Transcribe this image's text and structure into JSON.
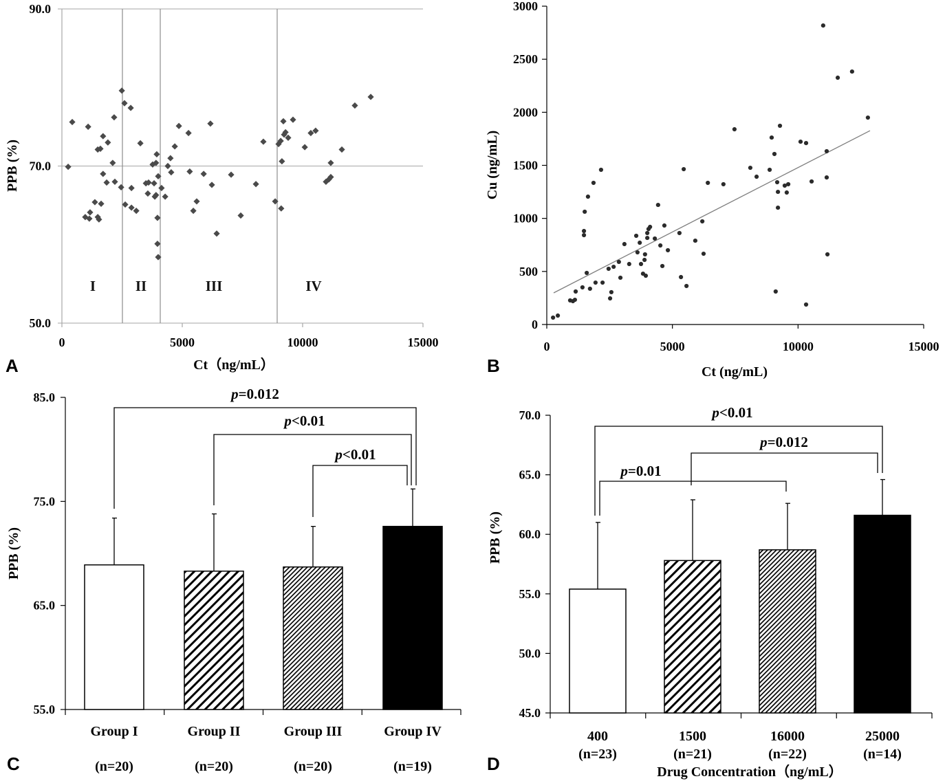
{
  "chart_data": [
    {
      "panel_label": "A",
      "type": "scatter",
      "xlabel": "Ct（ng/mL）",
      "ylabel": "PPB (%)",
      "xlim": [
        0,
        15000
      ],
      "ylim": [
        50,
        90
      ],
      "xticks": [
        "0",
        "5000",
        "10000",
        "15000"
      ],
      "yticks": [
        "50.0",
        "70.0",
        "90.0"
      ],
      "grid": "horizontal",
      "group_boundaries": [
        2514,
        4086,
        8943
      ],
      "group_labels": [
        "I",
        "II",
        "III",
        "IV"
      ],
      "points": [
        [
          260,
          69.9
        ],
        [
          430,
          75.6
        ],
        [
          1090,
          75.0
        ],
        [
          970,
          63.5
        ],
        [
          1140,
          63.3
        ],
        [
          1170,
          64.1
        ],
        [
          1370,
          65.4
        ],
        [
          1490,
          63.5
        ],
        [
          1540,
          63.2
        ],
        [
          1630,
          65.2
        ],
        [
          1490,
          72.1
        ],
        [
          1600,
          72.2
        ],
        [
          1710,
          73.8
        ],
        [
          1910,
          73.0
        ],
        [
          1710,
          69.0
        ],
        [
          1860,
          67.9
        ],
        [
          2110,
          70.4
        ],
        [
          2200,
          68.0
        ],
        [
          2170,
          76.2
        ],
        [
          2460,
          67.3
        ],
        [
          2490,
          79.6
        ],
        [
          2600,
          78.0
        ],
        [
          2630,
          65.1
        ],
        [
          2860,
          77.4
        ],
        [
          2890,
          67.2
        ],
        [
          2890,
          64.7
        ],
        [
          3090,
          64.3
        ],
        [
          3260,
          72.9
        ],
        [
          3490,
          67.8
        ],
        [
          3600,
          67.9
        ],
        [
          3770,
          70.2
        ],
        [
          3830,
          67.8
        ],
        [
          3910,
          70.4
        ],
        [
          3570,
          66.5
        ],
        [
          3860,
          66.1
        ],
        [
          3910,
          66.3
        ],
        [
          3940,
          71.5
        ],
        [
          3970,
          63.4
        ],
        [
          3970,
          60.1
        ],
        [
          4000,
          58.4
        ],
        [
          4000,
          68.7
        ],
        [
          4140,
          67.2
        ],
        [
          4290,
          66.1
        ],
        [
          4400,
          70.0
        ],
        [
          4510,
          71.0
        ],
        [
          4540,
          69.2
        ],
        [
          4690,
          72.5
        ],
        [
          4860,
          75.1
        ],
        [
          5260,
          74.2
        ],
        [
          5310,
          69.3
        ],
        [
          5460,
          64.3
        ],
        [
          5600,
          65.5
        ],
        [
          5890,
          69.0
        ],
        [
          6170,
          75.4
        ],
        [
          6230,
          67.6
        ],
        [
          6430,
          61.4
        ],
        [
          7030,
          68.9
        ],
        [
          7430,
          63.7
        ],
        [
          8060,
          67.7
        ],
        [
          8370,
          73.1
        ],
        [
          8860,
          65.5
        ],
        [
          9000,
          72.8
        ],
        [
          9090,
          73.2
        ],
        [
          9110,
          64.6
        ],
        [
          9140,
          70.6
        ],
        [
          9200,
          75.7
        ],
        [
          9230,
          74.0
        ],
        [
          9290,
          74.3
        ],
        [
          9400,
          73.6
        ],
        [
          9600,
          75.9
        ],
        [
          10090,
          72.4
        ],
        [
          10340,
          74.2
        ],
        [
          10540,
          74.5
        ],
        [
          10970,
          68.0
        ],
        [
          11090,
          68.3
        ],
        [
          11170,
          68.6
        ],
        [
          11170,
          70.4
        ],
        [
          11630,
          72.1
        ],
        [
          12170,
          77.7
        ],
        [
          12830,
          78.8
        ]
      ]
    },
    {
      "panel_label": "B",
      "type": "scatter",
      "xlabel": "Ct (ng/mL)",
      "ylabel": "Cu (ng/mL)",
      "xlim": [
        0,
        15000
      ],
      "ylim": [
        0,
        3000
      ],
      "xticks": [
        "0",
        "5000",
        "10000",
        "15000"
      ],
      "yticks": [
        "0",
        "500",
        "1000",
        "1500",
        "2000",
        "2500",
        "3000"
      ],
      "trendline": {
        "x": [
          274,
          12865
        ],
        "y": [
          298,
          1827
        ]
      },
      "points": [
        [
          250,
          65
        ],
        [
          440,
          84
        ],
        [
          930,
          227
        ],
        [
          1040,
          220
        ],
        [
          1120,
          233
        ],
        [
          1150,
          311
        ],
        [
          1420,
          350
        ],
        [
          1480,
          881
        ],
        [
          1480,
          842
        ],
        [
          1510,
          1063
        ],
        [
          1590,
          486
        ],
        [
          1640,
          1205
        ],
        [
          1720,
          337
        ],
        [
          1860,
          1335
        ],
        [
          1940,
          395
        ],
        [
          2160,
          1458
        ],
        [
          2220,
          395
        ],
        [
          2460,
          525
        ],
        [
          2520,
          246
        ],
        [
          2570,
          305
        ],
        [
          2660,
          544
        ],
        [
          2870,
          590
        ],
        [
          2930,
          441
        ],
        [
          3090,
          758
        ],
        [
          3280,
          570
        ],
        [
          3560,
          836
        ],
        [
          3610,
          680
        ],
        [
          3700,
          771
        ],
        [
          3750,
          570
        ],
        [
          3830,
          479
        ],
        [
          3890,
          609
        ],
        [
          3910,
          661
        ],
        [
          3940,
          460
        ],
        [
          4000,
          816
        ],
        [
          4000,
          862
        ],
        [
          4050,
          900
        ],
        [
          4110,
          920
        ],
        [
          4300,
          810
        ],
        [
          4430,
          1127
        ],
        [
          4520,
          745
        ],
        [
          4600,
          551
        ],
        [
          4680,
          933
        ],
        [
          4820,
          700
        ],
        [
          5280,
          862
        ],
        [
          5340,
          447
        ],
        [
          5450,
          1464
        ],
        [
          5560,
          363
        ],
        [
          5910,
          790
        ],
        [
          6190,
          972
        ],
        [
          6240,
          667
        ],
        [
          6410,
          1335
        ],
        [
          7030,
          1322
        ],
        [
          7470,
          1840
        ],
        [
          8100,
          1477
        ],
        [
          8350,
          1393
        ],
        [
          8870,
          1458
        ],
        [
          8950,
          1762
        ],
        [
          9060,
          1607
        ],
        [
          9110,
          311
        ],
        [
          9170,
          1341
        ],
        [
          9200,
          1250
        ],
        [
          9200,
          1101
        ],
        [
          9280,
          1873
        ],
        [
          9470,
          1309
        ],
        [
          9550,
          1244
        ],
        [
          9610,
          1322
        ],
        [
          10100,
          1723
        ],
        [
          10320,
          1710
        ],
        [
          10320,
          188
        ],
        [
          10540,
          1348
        ],
        [
          11000,
          2818
        ],
        [
          11140,
          1633
        ],
        [
          11140,
          1386
        ],
        [
          11170,
          661
        ],
        [
          11580,
          2326
        ],
        [
          12150,
          2384
        ],
        [
          12780,
          1950
        ]
      ]
    },
    {
      "panel_label": "C",
      "type": "bar",
      "xlabel": "",
      "ylabel": "PPB (%)",
      "ylim": [
        55,
        85
      ],
      "yticks": [
        "55.0",
        "65.0",
        "75.0",
        "85.0"
      ],
      "categories": [
        "Group I",
        "Group II",
        "Group III",
        "Group IV"
      ],
      "sample_sizes": [
        "(n=20)",
        "(n=20)",
        "(n=20)",
        "(n=19)"
      ],
      "values": [
        68.9,
        68.3,
        68.7,
        72.6
      ],
      "sd": [
        4.5,
        5.5,
        3.9,
        3.6
      ],
      "comparisons": [
        {
          "label": "p=0.012",
          "from": 0,
          "to": 3
        },
        {
          "label": "p<0.01",
          "from": 1,
          "to": 3
        },
        {
          "label": "p<0.01",
          "from": 2,
          "to": 3
        }
      ]
    },
    {
      "panel_label": "D",
      "type": "bar",
      "xlabel": "Drug Concentration（ng/mL）",
      "ylabel": "PPB (%)",
      "ylim": [
        45,
        70
      ],
      "yticks": [
        "45.0",
        "50.0",
        "55.0",
        "60.0",
        "65.0",
        "70.0"
      ],
      "categories": [
        "400",
        "1500",
        "16000",
        "25000"
      ],
      "sample_sizes": [
        "(n=23)",
        "(n=21)",
        "(n=22)",
        "(n=14)"
      ],
      "values": [
        55.4,
        57.8,
        58.7,
        61.6
      ],
      "sd": [
        5.6,
        5.1,
        3.9,
        3.0
      ],
      "comparisons": [
        {
          "label": "p<0.01",
          "from": 0,
          "to": 3
        },
        {
          "label": "p=0.012",
          "from": 1,
          "to": 3
        },
        {
          "label": "p=0.01",
          "from": 0,
          "to": 2
        }
      ]
    }
  ]
}
